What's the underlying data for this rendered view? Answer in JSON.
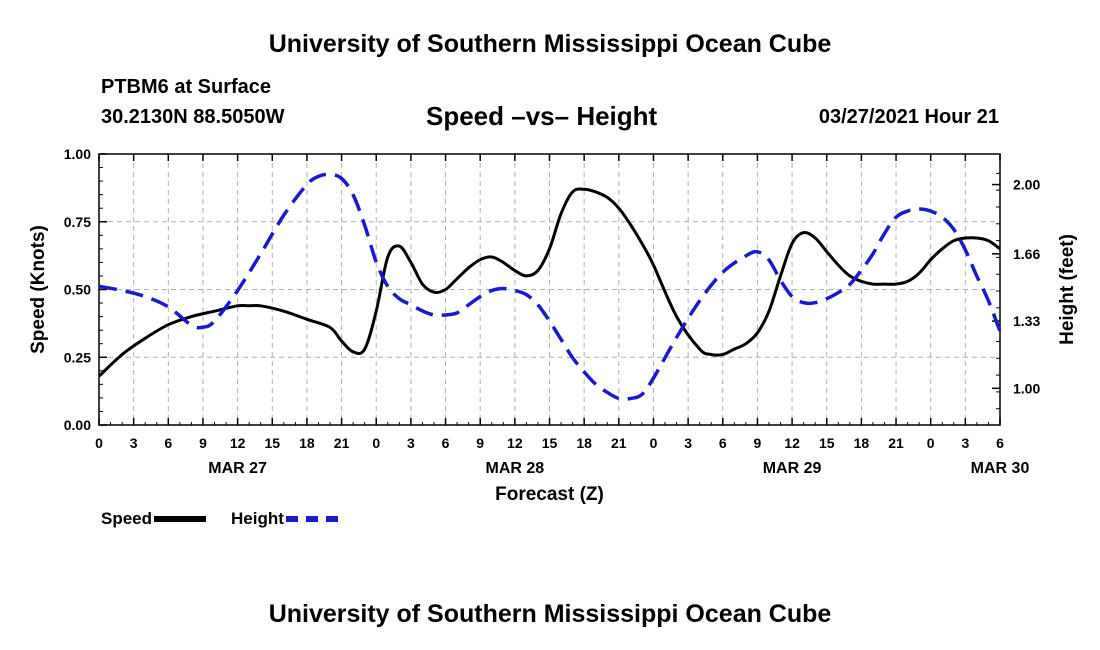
{
  "header": {
    "title": "University of Southern Mississippi Ocean Cube",
    "station": "PTBM6 at Surface",
    "coords": "30.2130N  88.5050W",
    "subtitle": "Speed –vs– Height",
    "datetime": "03/27/2021 Hour 21"
  },
  "footer": {
    "title": "University of Southern Mississippi Ocean Cube"
  },
  "legend": {
    "speed_label": "Speed",
    "height_label": "Height"
  },
  "colors": {
    "speed": "#000000",
    "height": "#1a1acc",
    "grid": "#b0b0b0"
  },
  "chart_data": {
    "type": "line",
    "title": "Speed -vs- Height",
    "xlabel": "Forecast (Z)",
    "ylabel": "Speed (Knots)",
    "y2label": "Height (feet)",
    "xlim": [
      0,
      78
    ],
    "ylim": [
      0,
      1
    ],
    "y2lim": [
      0.82,
      2.15
    ],
    "x_ticks": [
      0,
      3,
      6,
      9,
      12,
      15,
      18,
      21,
      24,
      27,
      30,
      33,
      36,
      39,
      42,
      45,
      48,
      51,
      54,
      57,
      60,
      63,
      66,
      69,
      72,
      75,
      78
    ],
    "x_tick_labels": [
      "0",
      "3",
      "6",
      "9",
      "12",
      "15",
      "18",
      "21",
      "0",
      "3",
      "6",
      "9",
      "12",
      "15",
      "18",
      "21",
      "0",
      "3",
      "6",
      "9",
      "12",
      "15",
      "18",
      "21",
      "0",
      "3",
      "6"
    ],
    "y_ticks": [
      0,
      0.25,
      0.5,
      0.75,
      1
    ],
    "y_tick_labels": [
      "0.00",
      "0.25",
      "0.50",
      "0.75",
      "1.00"
    ],
    "y2_ticks": [
      1.0,
      1.33,
      1.66,
      2.0
    ],
    "y2_tick_labels": [
      "1.00",
      "1.33",
      "1.66",
      "2.00"
    ],
    "date_labels": [
      {
        "x": 12,
        "label": "MAR 27"
      },
      {
        "x": 36,
        "label": "MAR 28"
      },
      {
        "x": 60,
        "label": "MAR 29"
      },
      {
        "x": 78,
        "label": "MAR 30"
      }
    ],
    "grid": true,
    "series": [
      {
        "name": "Speed",
        "axis": "left",
        "x": [
          0,
          2,
          4,
          6,
          8,
          10,
          12,
          13,
          14,
          16,
          18,
          20,
          21,
          22,
          23,
          24,
          25,
          26,
          27,
          28,
          29,
          30,
          31,
          32,
          33,
          34,
          35,
          36,
          37,
          38,
          39,
          40,
          41,
          42,
          43,
          44,
          45,
          46,
          47,
          48,
          50,
          52,
          53,
          54,
          55,
          56,
          57,
          58,
          59,
          60,
          61,
          62,
          63,
          64,
          65,
          66,
          67,
          68,
          69,
          70,
          71,
          72,
          73,
          74,
          75,
          76,
          77,
          78
        ],
        "values": [
          0.18,
          0.26,
          0.32,
          0.37,
          0.4,
          0.42,
          0.44,
          0.44,
          0.44,
          0.42,
          0.39,
          0.36,
          0.31,
          0.27,
          0.28,
          0.42,
          0.62,
          0.66,
          0.6,
          0.52,
          0.49,
          0.5,
          0.54,
          0.58,
          0.61,
          0.62,
          0.6,
          0.57,
          0.55,
          0.57,
          0.65,
          0.78,
          0.86,
          0.87,
          0.86,
          0.84,
          0.8,
          0.74,
          0.67,
          0.59,
          0.4,
          0.28,
          0.26,
          0.26,
          0.28,
          0.3,
          0.34,
          0.42,
          0.55,
          0.67,
          0.71,
          0.69,
          0.64,
          0.59,
          0.55,
          0.53,
          0.52,
          0.52,
          0.52,
          0.53,
          0.56,
          0.61,
          0.65,
          0.68,
          0.69,
          0.69,
          0.68,
          0.65
        ]
      },
      {
        "name": "Height",
        "axis": "right",
        "x": [
          0,
          2,
          4,
          6,
          8,
          9,
          10,
          12,
          14,
          16,
          18,
          19,
          20,
          21,
          22,
          23,
          24,
          25,
          26,
          27,
          28,
          29,
          30,
          31,
          32,
          33,
          34,
          35,
          36,
          37,
          38,
          39,
          40,
          41,
          42,
          43,
          44,
          45,
          46,
          47,
          48,
          50,
          52,
          54,
          56,
          57,
          58,
          59,
          60,
          61,
          62,
          63,
          64,
          65,
          66,
          67,
          68,
          69,
          70,
          71,
          72,
          73,
          74,
          75,
          76,
          77,
          78
        ],
        "values": [
          1.5,
          1.48,
          1.45,
          1.4,
          1.31,
          1.3,
          1.33,
          1.48,
          1.66,
          1.85,
          2.0,
          2.04,
          2.05,
          2.03,
          1.95,
          1.8,
          1.62,
          1.5,
          1.44,
          1.41,
          1.38,
          1.36,
          1.36,
          1.37,
          1.41,
          1.45,
          1.48,
          1.49,
          1.48,
          1.46,
          1.41,
          1.33,
          1.24,
          1.15,
          1.08,
          1.02,
          0.98,
          0.95,
          0.95,
          0.97,
          1.05,
          1.25,
          1.43,
          1.57,
          1.65,
          1.67,
          1.63,
          1.53,
          1.45,
          1.42,
          1.42,
          1.44,
          1.47,
          1.51,
          1.58,
          1.66,
          1.76,
          1.84,
          1.87,
          1.88,
          1.87,
          1.84,
          1.78,
          1.68,
          1.55,
          1.43,
          1.28
        ]
      }
    ]
  }
}
